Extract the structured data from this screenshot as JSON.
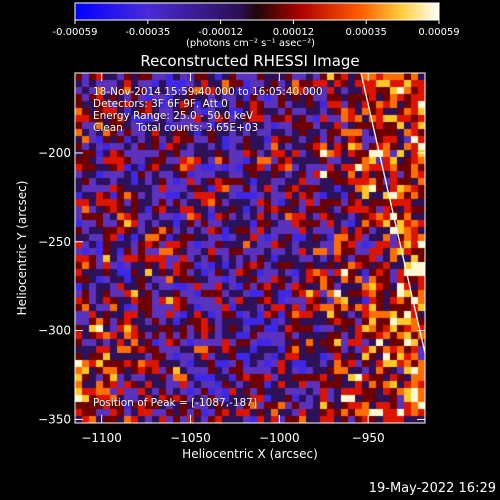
{
  "colorbar": {
    "tick_labels": [
      "-0.00059",
      "-0.00035",
      "-0.00012",
      "0.00012",
      "0.00035",
      "0.00059"
    ],
    "unit_label": "(photons cm⁻² s⁻¹ asec⁻²)",
    "colors": [
      "#0000ff",
      "#5a2bd0",
      "#3b1066",
      "#6a0000",
      "#e00000",
      "#ff7a00",
      "#ffffff"
    ]
  },
  "title": "Reconstructed RHESSI Image",
  "info": {
    "line1": "18-Nov-2014 15:59:40.000 to 16:05:40.000",
    "line2": "Detectors: 3F 6F 9F, Att 0",
    "line3": "Energy Range: 25.0 - 50.0 keV",
    "line4": "Clean    Total counts: 3.65E+03",
    "peak": "Position of Peak = [-1087,-187]"
  },
  "chart_data": {
    "type": "heatmap",
    "title": "Reconstructed RHESSI Image",
    "xlabel": "Heliocentric X (arcsec)",
    "ylabel": "Heliocentric Y (arcsec)",
    "xlim": [
      -1115,
      -918
    ],
    "ylim": [
      -352,
      -155
    ],
    "xticks": [
      -1100,
      -1050,
      -1000,
      -950
    ],
    "yticks": [
      -200,
      -250,
      -300,
      -350
    ],
    "value_range": [
      -0.00059,
      0.00059
    ],
    "peak_position": [
      -1087,
      -187
    ],
    "limb_line": [
      [
        -967,
        -155
      ],
      [
        -918,
        -305
      ]
    ]
  },
  "timestamp": "19-May-2022 16:29"
}
